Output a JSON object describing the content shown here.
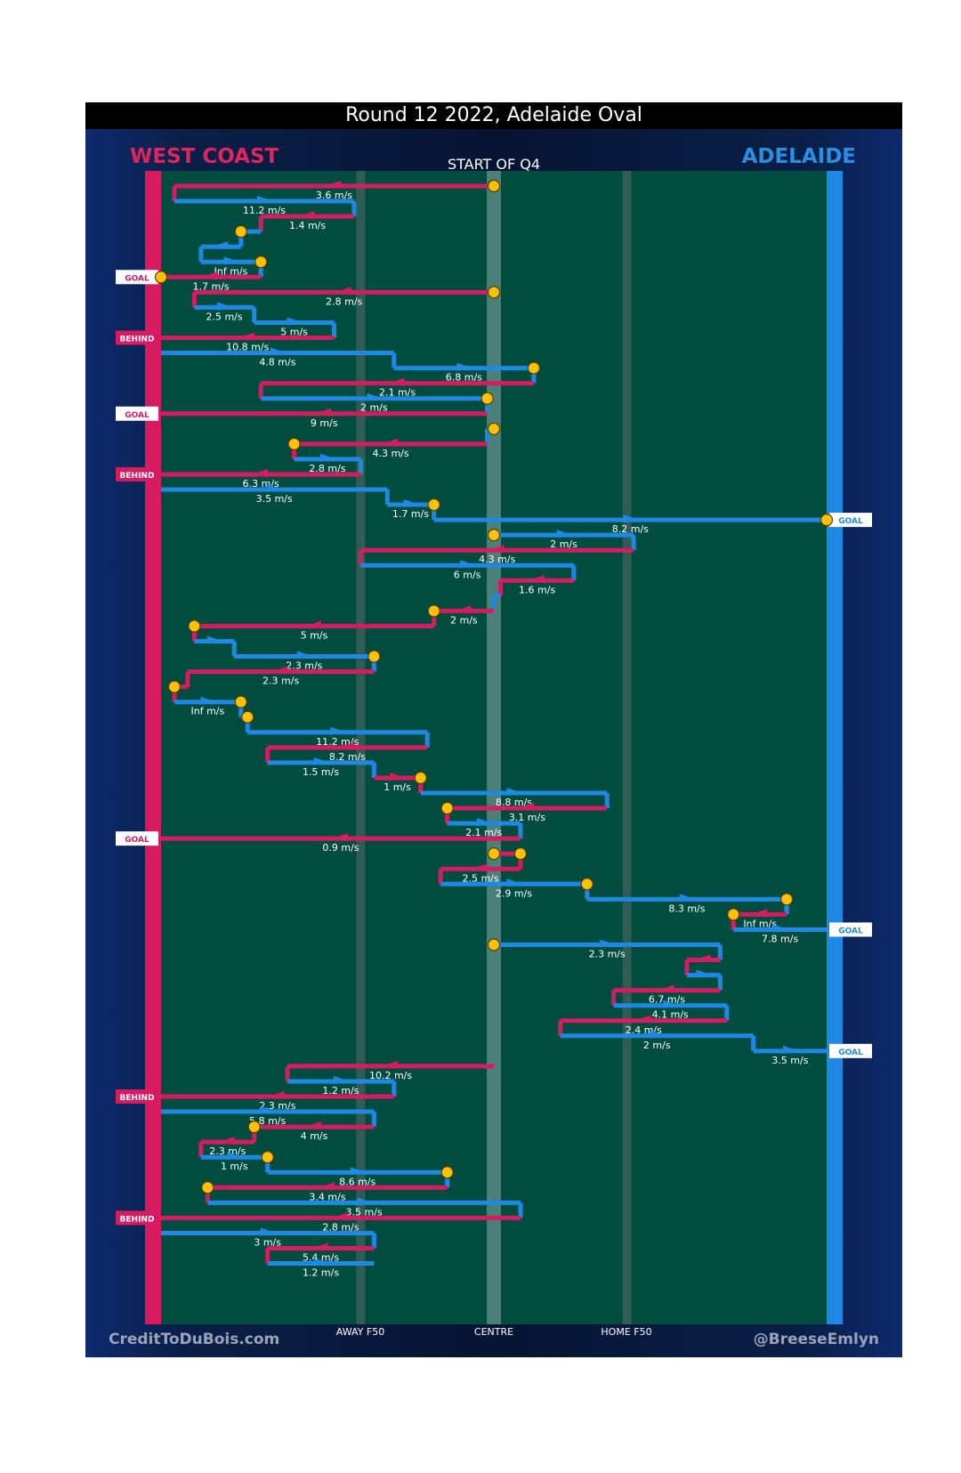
{
  "title": "Round 12 2022, Adelaide Oval",
  "teams": {
    "left": "WEST COAST",
    "right": "ADELAIDE"
  },
  "start_label": "START OF Q4",
  "footer": {
    "left": "CreditToDuBois.com",
    "right": "@BreeseEmlyn"
  },
  "axis_labels": {
    "away": "AWAY F50",
    "centre": "CENTRE",
    "home": "HOME F50"
  },
  "colors": {
    "west_coast": "#d81b60",
    "adelaide": "#1e88e5",
    "field": "#004d40",
    "possession_marker": "#ffc107"
  },
  "chart_data": {
    "type": "line",
    "title": "Round 12 2022, Adelaide Oval",
    "subtitle": "START OF Q4",
    "x_axis": {
      "range": [
        0,
        100
      ],
      "ticks": [
        {
          "value": 30,
          "label": "AWAY F50"
        },
        {
          "value": 50,
          "label": "CENTRE"
        },
        {
          "value": 70,
          "label": "HOME F50"
        }
      ]
    },
    "series": [
      {
        "name": "WEST COAST",
        "color": "#d81b60",
        "goal_end": 0
      },
      {
        "name": "ADELAIDE",
        "color": "#1e88e5",
        "goal_end": 100
      }
    ],
    "chains": [
      {
        "start": 50,
        "turnover_start": true,
        "segments": [
          {
            "team": "WC",
            "to": 2,
            "speed": "3.6 m/s"
          },
          {
            "team": "AD",
            "to": 29,
            "speed": "11.2 m/s"
          },
          {
            "team": "WC",
            "to": 15,
            "speed": "1.4 m/s"
          },
          {
            "team": "AD",
            "to": 12,
            "speed": "",
            "turnover": true
          },
          {
            "team": "AD",
            "to": 6,
            "speed": ""
          },
          {
            "team": "AD",
            "to": 15,
            "speed": "Inf m/s",
            "turnover": true
          },
          {
            "team": "WC",
            "to": 0,
            "speed": "1.7 m/s",
            "turnover": true,
            "result": "GOAL"
          }
        ]
      },
      {
        "start": 50,
        "turnover_start": true,
        "segments": [
          {
            "team": "WC",
            "to": 5,
            "speed": "2.8 m/s"
          },
          {
            "team": "AD",
            "to": 14,
            "speed": "2.5 m/s"
          },
          {
            "team": "AD",
            "to": 26,
            "speed": "5 m/s"
          },
          {
            "team": "WC",
            "to": 0,
            "speed": "10.8 m/s",
            "result": "BEHIND"
          }
        ]
      },
      {
        "start": 0,
        "segments": [
          {
            "team": "AD",
            "to": 35,
            "speed": "4.8 m/s"
          },
          {
            "team": "AD",
            "to": 56,
            "speed": "6.8 m/s",
            "turnover": true
          },
          {
            "team": "WC",
            "to": 15,
            "speed": "2.1 m/s"
          },
          {
            "team": "AD",
            "to": 49,
            "speed": "2 m/s",
            "turnover": true
          },
          {
            "team": "WC",
            "to": 0,
            "speed": "9 m/s",
            "result": "GOAL"
          }
        ]
      },
      {
        "start": 50,
        "turnover_start": true,
        "segments": [
          {
            "team": "AD",
            "to": 49,
            "speed": ""
          },
          {
            "team": "WC",
            "to": 20,
            "speed": "4.3 m/s",
            "turnover": true
          },
          {
            "team": "AD",
            "to": 30,
            "speed": "2.8 m/s"
          },
          {
            "team": "WC",
            "to": 0,
            "speed": "6.3 m/s",
            "result": "BEHIND"
          }
        ]
      },
      {
        "start": 0,
        "segments": [
          {
            "team": "AD",
            "to": 34,
            "speed": "3.5 m/s"
          },
          {
            "team": "AD",
            "to": 41,
            "speed": "1.7 m/s",
            "turnover": true
          },
          {
            "team": "AD",
            "to": 100,
            "speed": "8.2 m/s",
            "turnover": true,
            "result": "GOAL"
          }
        ]
      },
      {
        "start": 50,
        "turnover_start": true,
        "segments": [
          {
            "team": "AD",
            "to": 71,
            "speed": "2 m/s"
          },
          {
            "team": "WC",
            "to": 30,
            "speed": "4.3 m/s"
          },
          {
            "team": "AD",
            "to": 62,
            "speed": "6 m/s"
          },
          {
            "team": "WC",
            "to": 51,
            "speed": "1.6 m/s"
          },
          {
            "team": "AD",
            "to": 50,
            "speed": ""
          },
          {
            "team": "WC",
            "to": 41,
            "speed": "2 m/s",
            "turnover": true
          },
          {
            "team": "WC",
            "to": 5,
            "speed": "5 m/s",
            "turnover": true
          },
          {
            "team": "AD",
            "to": 11,
            "speed": ""
          },
          {
            "team": "AD",
            "to": 32,
            "speed": "2.3 m/s",
            "turnover": true
          },
          {
            "team": "WC",
            "to": 4,
            "speed": "2.3 m/s"
          },
          {
            "team": "WC",
            "to": 2,
            "speed": "",
            "turnover": true
          },
          {
            "team": "AD",
            "to": 12,
            "speed": "Inf m/s",
            "turnover": true
          },
          {
            "team": "AD",
            "to": 13,
            "speed": "",
            "turnover": true
          },
          {
            "team": "AD",
            "to": 40,
            "speed": "11.2 m/s"
          },
          {
            "team": "WC",
            "to": 16,
            "speed": "8.2 m/s"
          },
          {
            "team": "AD",
            "to": 32,
            "speed": "1.5 m/s"
          },
          {
            "team": "WC",
            "to": 39,
            "speed": "1 m/s",
            "turnover": true
          },
          {
            "team": "AD",
            "to": 67,
            "speed": "8.8 m/s"
          },
          {
            "team": "WC",
            "to": 43,
            "speed": "3.1 m/s",
            "turnover": true
          },
          {
            "team": "AD",
            "to": 54,
            "speed": "2.1 m/s"
          },
          {
            "team": "WC",
            "to": 0,
            "speed": "0.9 m/s",
            "result": "GOAL"
          }
        ]
      },
      {
        "start": 50,
        "turnover_start": true,
        "segments": [
          {
            "team": "WC",
            "to": 54,
            "speed": "",
            "turnover": true
          },
          {
            "team": "WC",
            "to": 42,
            "speed": "2.5 m/s"
          },
          {
            "team": "AD",
            "to": 64,
            "speed": "2.9 m/s",
            "turnover": true
          },
          {
            "team": "AD",
            "to": 94,
            "speed": "8.3 m/s",
            "turnover": true
          },
          {
            "team": "WC",
            "to": 86,
            "speed": "Inf m/s",
            "turnover": true
          },
          {
            "team": "AD",
            "to": 100,
            "speed": "7.8 m/s",
            "result": "GOAL"
          }
        ]
      },
      {
        "start": 50,
        "turnover_start": true,
        "segments": [
          {
            "team": "AD",
            "to": 84,
            "speed": "2.3 m/s"
          },
          {
            "team": "WC",
            "to": 79,
            "speed": ""
          },
          {
            "team": "AD",
            "to": 84,
            "speed": ""
          },
          {
            "team": "WC",
            "to": 68,
            "speed": "6.7 m/s"
          },
          {
            "team": "AD",
            "to": 85,
            "speed": "4.1 m/s"
          },
          {
            "team": "WC",
            "to": 60,
            "speed": "2.4 m/s"
          },
          {
            "team": "AD",
            "to": 89,
            "speed": "2 m/s"
          },
          {
            "team": "AD",
            "to": 100,
            "speed": "3.5 m/s",
            "result": "GOAL"
          }
        ]
      },
      {
        "start": 50,
        "segments": [
          {
            "team": "WC",
            "to": 19,
            "speed": "10.2 m/s"
          },
          {
            "team": "AD",
            "to": 35,
            "speed": "1.2 m/s"
          },
          {
            "team": "WC",
            "to": 0,
            "speed": "2.3 m/s",
            "result": "BEHIND"
          }
        ]
      },
      {
        "start": 0,
        "segments": [
          {
            "team": "AD",
            "to": 32,
            "speed": "5.8 m/s"
          },
          {
            "team": "WC",
            "to": 14,
            "speed": "4 m/s",
            "turnover": true
          },
          {
            "team": "WC",
            "to": 6,
            "speed": "2.3 m/s"
          },
          {
            "team": "AD",
            "to": 16,
            "speed": "1 m/s",
            "turnover": true
          },
          {
            "team": "AD",
            "to": 43,
            "speed": "8.6 m/s",
            "turnover": true
          },
          {
            "team": "WC",
            "to": 7,
            "speed": "3.4 m/s",
            "turnover": true
          },
          {
            "team": "AD",
            "to": 54,
            "speed": "3.5 m/s"
          },
          {
            "team": "WC",
            "to": 0,
            "speed": "2.8 m/s",
            "result": "BEHIND"
          }
        ]
      },
      {
        "start": 0,
        "segments": [
          {
            "team": "AD",
            "to": 32,
            "speed": "3 m/s"
          },
          {
            "team": "WC",
            "to": 16,
            "speed": "5.4 m/s"
          },
          {
            "team": "AD",
            "to": 32,
            "speed": "1.2 m/s"
          }
        ]
      }
    ]
  }
}
